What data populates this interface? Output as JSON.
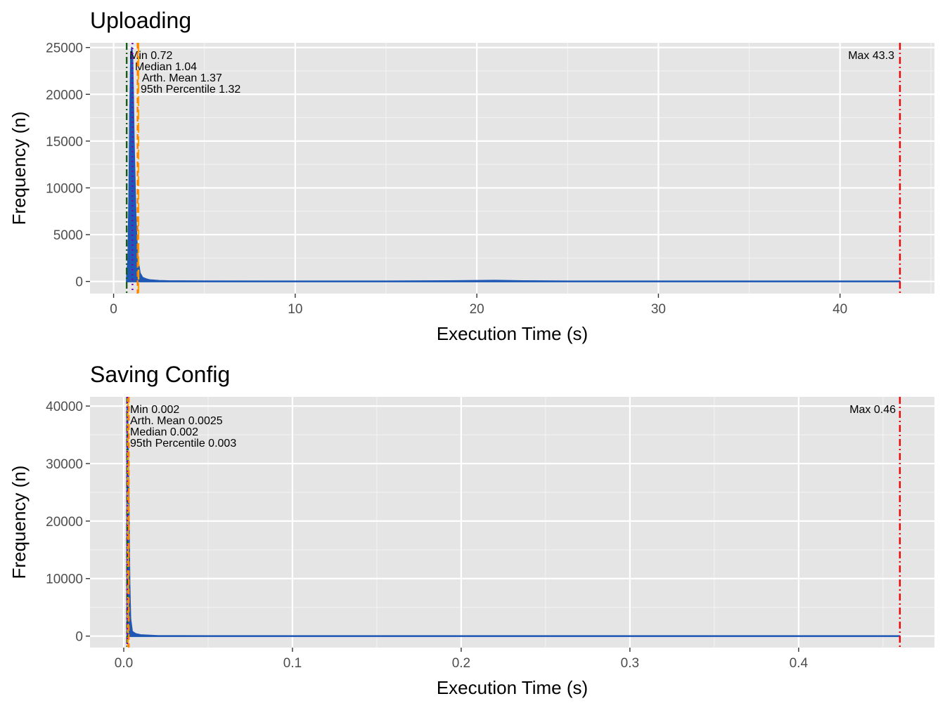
{
  "chart_data": [
    {
      "type": "histogram",
      "title": "Uploading",
      "xlabel": "Execution Time (s)",
      "ylabel": "Frequency (n)",
      "xlim": [
        -1.3,
        45.2
      ],
      "ylim": [
        -1300,
        25500
      ],
      "x_ticks": [
        0,
        10,
        20,
        30,
        40
      ],
      "y_ticks": [
        0,
        5000,
        10000,
        15000,
        20000,
        25000
      ],
      "x_tick_labels": [
        "0",
        "10",
        "20",
        "30",
        "40"
      ],
      "y_tick_labels": [
        "0",
        "5000",
        "10000",
        "15000",
        "20000",
        "25000"
      ],
      "grid": true,
      "colors": {
        "fill": "#1f57b5",
        "panel": "#e5e5e5",
        "min": "#1a5c1a",
        "median": "#7f00b2",
        "mean": "#ffa500",
        "p95": "#ff7f00",
        "max": "#ff0000"
      },
      "series": [
        {
          "x": [
            0.72,
            0.8,
            0.85,
            0.9,
            0.95,
            1.0,
            1.04,
            1.08,
            1.12,
            1.17,
            1.22,
            1.28,
            1.35,
            1.45,
            1.6,
            1.8,
            2.0,
            2.5,
            3.0,
            5.0,
            10.0,
            15.0,
            18.5,
            20.0,
            21.0,
            22.5,
            25.0,
            30.0,
            35.0,
            40.0,
            43.3
          ],
          "values": [
            300,
            2500,
            9000,
            18000,
            24000,
            25000,
            24000,
            20000,
            15000,
            11000,
            7000,
            4200,
            2200,
            900,
            400,
            250,
            150,
            80,
            50,
            20,
            10,
            10,
            50,
            80,
            100,
            50,
            10,
            5,
            5,
            5,
            1
          ]
        }
      ],
      "reference_lines": [
        {
          "label": "Min 0.72",
          "x": 0.72,
          "color_key": "min",
          "dash": "dotdash"
        },
        {
          "label": "Median 1.04",
          "x": 1.04,
          "color_key": "median",
          "dash": "dotted"
        },
        {
          "label": "Arth. Mean 1.37",
          "x": 1.37,
          "color_key": "mean",
          "dash": "longdash"
        },
        {
          "label": "95th Percentile 1.32",
          "x": 1.32,
          "color_key": "p95",
          "dash": "dashed"
        },
        {
          "label": "Max 43.3",
          "x": 43.3,
          "color_key": "max",
          "dash": "dotdash"
        }
      ]
    },
    {
      "type": "histogram",
      "title": "Saving Config",
      "xlabel": "Execution Time (s)",
      "ylabel": "Frequency (n)",
      "xlim": [
        -0.02,
        0.4805
      ],
      "ylim": [
        -2000,
        41600
      ],
      "x_ticks": [
        0.0,
        0.1,
        0.2,
        0.3,
        0.4
      ],
      "y_ticks": [
        0,
        10000,
        20000,
        30000,
        40000
      ],
      "x_tick_labels": [
        "0.0",
        "0.1",
        "0.2",
        "0.3",
        "0.4"
      ],
      "y_tick_labels": [
        "0",
        "10000",
        "20000",
        "30000",
        "40000"
      ],
      "grid": true,
      "colors": {
        "fill": "#1f57b5",
        "panel": "#e5e5e5",
        "min": "#1a5c1a",
        "median": "#7f00b2",
        "mean": "#ffa500",
        "p95": "#ff7f00",
        "max": "#ff0000"
      },
      "series": [
        {
          "x": [
            0.002,
            0.0025,
            0.003,
            0.0035,
            0.004,
            0.005,
            0.007,
            0.01,
            0.02,
            0.05,
            0.1,
            0.2,
            0.3,
            0.4,
            0.46
          ],
          "values": [
            40000,
            36000,
            22000,
            9000,
            3000,
            800,
            400,
            200,
            40,
            10,
            5,
            2,
            1,
            1,
            1
          ]
        }
      ],
      "reference_lines": [
        {
          "label": "Min 0.002",
          "x": 0.002,
          "color_key": "min",
          "dash": "dotdash"
        },
        {
          "label": "Arth. Mean 0.0025",
          "x": 0.0025,
          "color_key": "mean",
          "dash": "longdash"
        },
        {
          "label": "Median 0.002",
          "x": 0.002,
          "color_key": "median",
          "dash": "dotted"
        },
        {
          "label": "95th Percentile 0.003",
          "x": 0.003,
          "color_key": "p95",
          "dash": "dashed"
        },
        {
          "label": "Max 0.46",
          "x": 0.46,
          "color_key": "max",
          "dash": "dotdash"
        }
      ]
    }
  ]
}
